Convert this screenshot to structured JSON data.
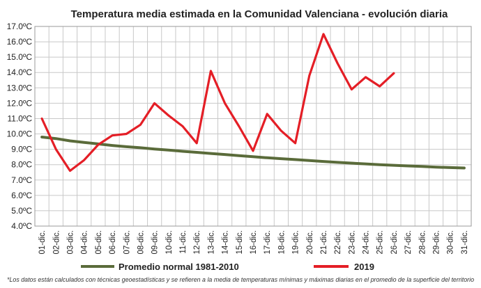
{
  "chart_data": {
    "type": "line",
    "title": "Temperatura media estimada en la Comunidad Valenciana - evolución diaria",
    "categories": [
      "01-dic.",
      "02-dic.",
      "03-dic.",
      "04-dic.",
      "05-dic.",
      "06-dic.",
      "07-dic.",
      "08-dic.",
      "09-dic.",
      "10-dic.",
      "11-dic.",
      "12-dic.",
      "13-dic.",
      "14-dic.",
      "15-dic.",
      "16-dic.",
      "17-dic.",
      "18-dic.",
      "19-dic.",
      "20-dic.",
      "21-dic.",
      "22-dic.",
      "23-dic.",
      "24-dic.",
      "25-dic.",
      "26-dic.",
      "27-dic.",
      "28-dic.",
      "29-dic.",
      "30-dic.",
      "31-dic."
    ],
    "yticks": [
      "4.0ºC",
      "5.0ºC",
      "6.0ºC",
      "7.0ºC",
      "8.0ºC",
      "9.0ºC",
      "10.0ºC",
      "11.0ºC",
      "12.0ºC",
      "13.0ºC",
      "14.0ºC",
      "15.0ºC",
      "16.0ºC",
      "17.0ºC"
    ],
    "ylim": [
      4,
      17
    ],
    "grid": true,
    "legend_position": "bottom",
    "series": [
      {
        "name": "Promedio normal 1981-2010",
        "color": "#5a6b3a",
        "values": [
          9.8,
          9.7,
          9.55,
          9.45,
          9.35,
          9.25,
          9.17,
          9.1,
          9.02,
          8.95,
          8.87,
          8.8,
          8.73,
          8.66,
          8.59,
          8.52,
          8.45,
          8.39,
          8.33,
          8.27,
          8.21,
          8.15,
          8.1,
          8.05,
          8.0,
          7.96,
          7.92,
          7.88,
          7.84,
          7.81,
          7.78
        ]
      },
      {
        "name": "2019",
        "color": "#e41e26",
        "values": [
          11.0,
          9.0,
          7.6,
          8.3,
          9.3,
          9.9,
          10.0,
          10.6,
          12.0,
          11.2,
          10.5,
          9.4,
          14.1,
          12.0,
          10.5,
          8.9,
          11.3,
          10.2,
          9.4,
          13.8,
          16.5,
          14.6,
          12.9,
          13.7,
          13.1,
          13.95,
          null,
          null,
          null,
          null,
          null
        ]
      }
    ],
    "footnote": "*Los datos están calculados con técnicas geoestadísticas y se refieren a la media de temperaturas mínimas y máximas diarias en el promedio de la superficie del territorio"
  }
}
